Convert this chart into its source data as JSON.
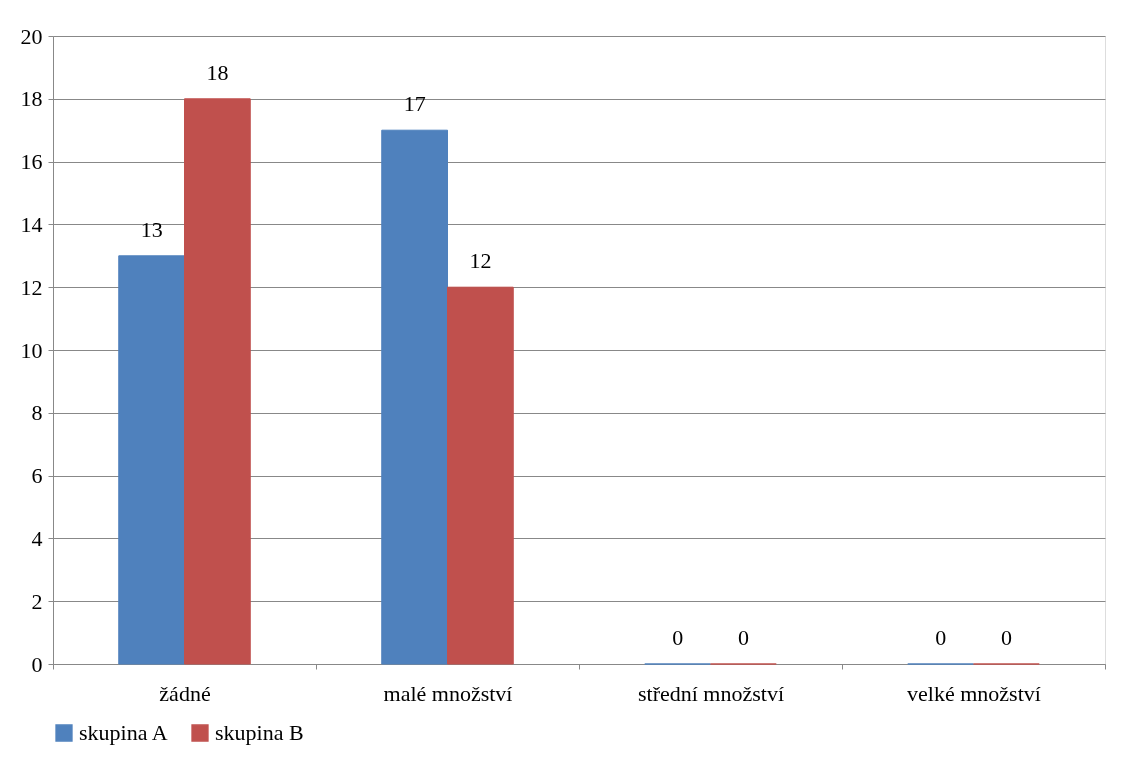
{
  "chart_data": {
    "type": "bar",
    "categories": [
      "žádné",
      "malé množství",
      "střední množství",
      "velké množství"
    ],
    "series": [
      {
        "name": "skupina A",
        "color": "#4f81bd",
        "values": [
          13,
          17,
          0,
          0
        ]
      },
      {
        "name": "skupina B",
        "color": "#c0504d",
        "values": [
          18,
          12,
          0,
          0
        ]
      }
    ],
    "ylim": [
      0,
      20
    ],
    "yticks": [
      0,
      2,
      4,
      6,
      8,
      10,
      12,
      14,
      16,
      18,
      20
    ],
    "grid": "y",
    "legend": "bottom",
    "data_labels": true
  }
}
